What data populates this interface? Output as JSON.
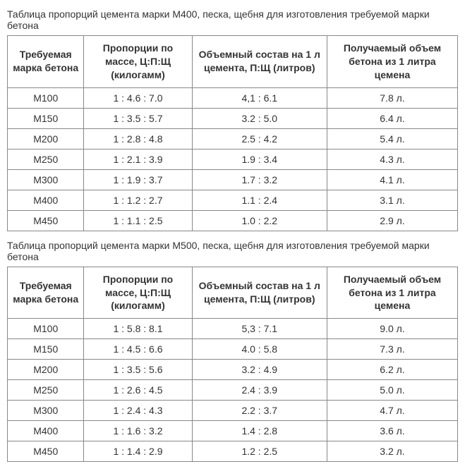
{
  "table1": {
    "caption": "Таблица пропорций цемента марки М400, песка, щебня для изготовления требуемой марки бетона",
    "columns": [
      "Требуемая марка бетона",
      "Пропорции по массе, Ц:П:Щ (килогамм)",
      "Объемный состав на 1 л цемента, П:Щ (литров)",
      "Получаемый объем бетона из 1 литра цемена"
    ],
    "rows": [
      [
        "М100",
        "1 : 4.6 : 7.0",
        "4,1 : 6.1",
        "7.8 л."
      ],
      [
        "М150",
        "1 : 3.5 : 5.7",
        "3.2 : 5.0",
        "6.4 л."
      ],
      [
        "М200",
        "1 : 2.8 : 4.8",
        "2.5 : 4.2",
        "5.4 л."
      ],
      [
        "М250",
        "1 : 2.1 : 3.9",
        "1.9 : 3.4",
        "4.3 л."
      ],
      [
        "М300",
        "1 : 1.9 : 3.7",
        "1.7 : 3.2",
        "4.1 л."
      ],
      [
        "М400",
        "1 : 1.2 : 2.7",
        "1.1 : 2.4",
        "3.1 л."
      ],
      [
        "М450",
        "1 : 1.1 : 2.5",
        "1.0 : 2.2",
        "2.9 л."
      ]
    ]
  },
  "table2": {
    "caption": "Таблица пропорций цемента марки М500, песка, щебня для изготовления требуемой марки бетона",
    "columns": [
      "Требуемая марка бетона",
      "Пропорции по массе, Ц:П:Щ (килогамм)",
      "Объемный состав на 1 л цемента, П:Щ (литров)",
      "Получаемый объем бетона из 1 литра цемена"
    ],
    "rows": [
      [
        "М100",
        "1 : 5.8 : 8.1",
        "5,3 : 7.1",
        "9.0 л."
      ],
      [
        "М150",
        "1 : 4.5 : 6.6",
        "4.0 : 5.8",
        "7.3 л."
      ],
      [
        "М200",
        "1 : 3.5 : 5.6",
        "3.2 : 4.9",
        "6.2 л."
      ],
      [
        "М250",
        "1 : 2.6 : 4.5",
        "2.4 : 3.9",
        "5.0 л."
      ],
      [
        "М300",
        "1 : 2.4 : 4.3",
        "2.2 : 3.7",
        "4.7 л."
      ],
      [
        "М400",
        "1 : 1.6 : 3.2",
        "1.4 : 2.8",
        "3.6 л."
      ],
      [
        "М450",
        "1 : 1.4 : 2.9",
        "1.2 : 2.5",
        "3.2 л."
      ]
    ]
  }
}
